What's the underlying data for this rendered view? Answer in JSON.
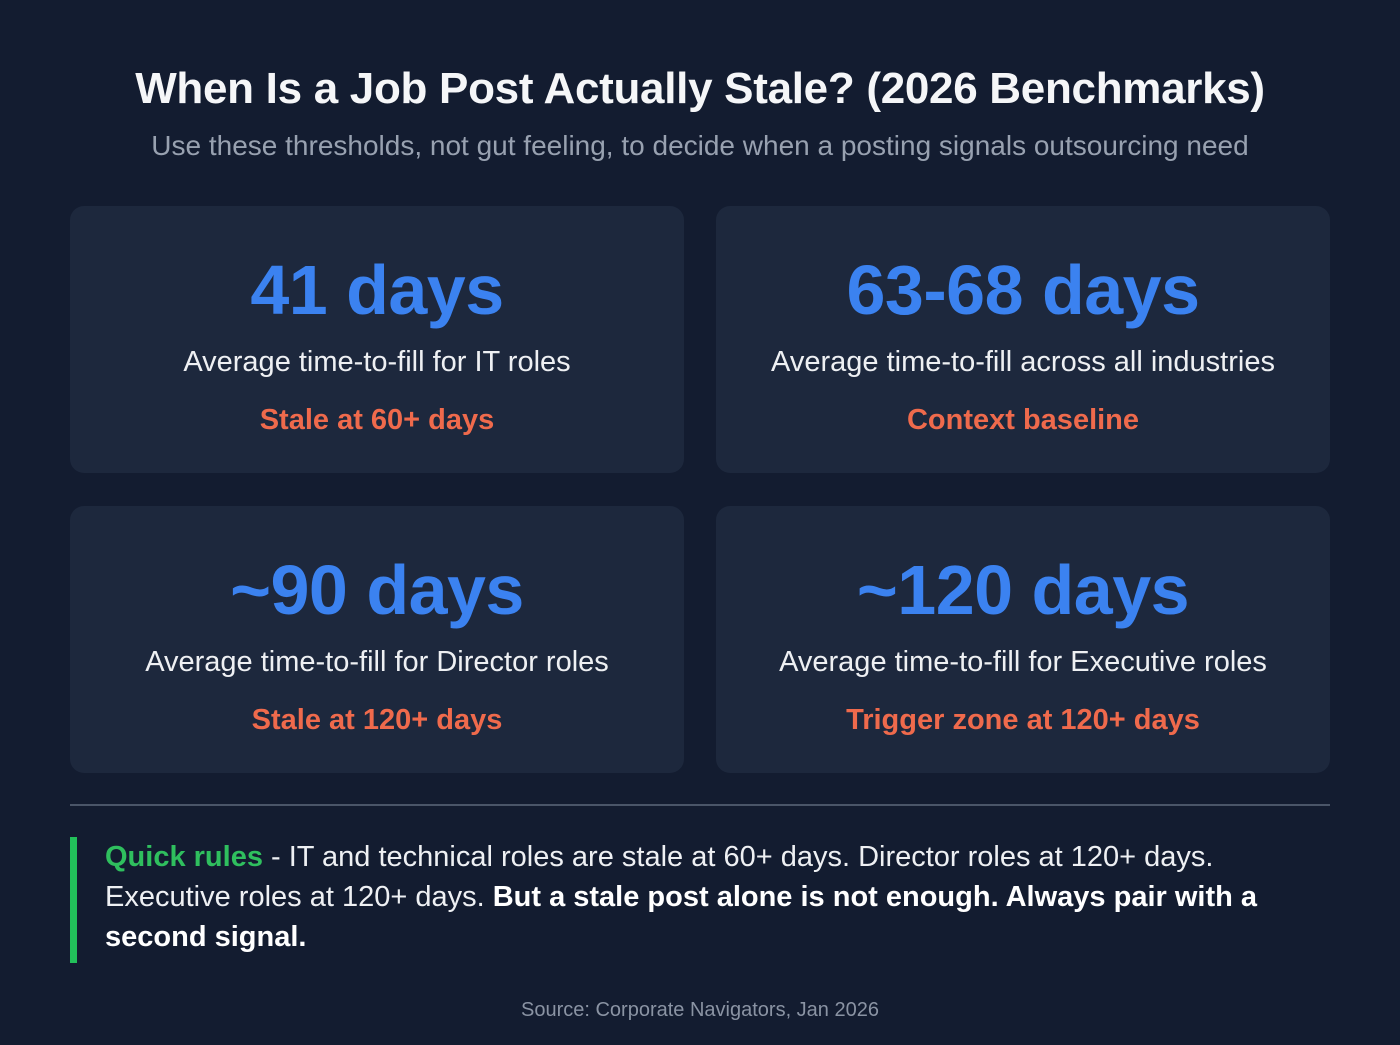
{
  "header": {
    "title": "When Is a Job Post Actually Stale? (2026 Benchmarks)",
    "subtitle": "Use these thresholds, not gut feeling, to decide when a posting signals outsourcing need"
  },
  "cards": [
    {
      "value": "41 days",
      "description": "Average time-to-fill for IT roles",
      "note": "Stale at 60+ days"
    },
    {
      "value": "63-68 days",
      "description": "Average time-to-fill across all industries",
      "note": "Context baseline"
    },
    {
      "value": "~90 days",
      "description": "Average time-to-fill for Director roles",
      "note": "Stale at 120+ days"
    },
    {
      "value": "~120 days",
      "description": "Average time-to-fill for Executive roles",
      "note": "Trigger zone at 120+ days"
    }
  ],
  "quick_rules": {
    "label": "Quick rules",
    "text": " - IT and technical roles are stale at 60+ days. Director roles at 120+ days. Executive roles at 120+ days. ",
    "bold_text": "But a stale post alone is not enough. Always pair with a second signal."
  },
  "footer": {
    "source": "Source: Corporate Navigators, Jan 2026"
  },
  "colors": {
    "background": "#131c30",
    "card": "#1d283d",
    "value_blue": "#3b82f0",
    "note_orange": "#ef6a4c",
    "accent_green": "#22c05a"
  }
}
